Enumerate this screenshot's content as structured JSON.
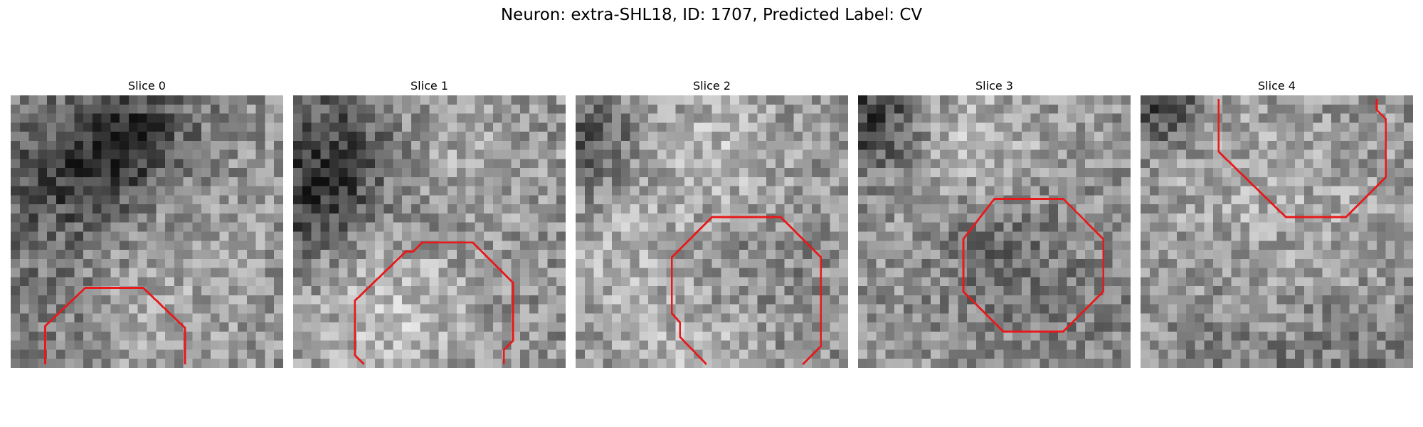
{
  "figure": {
    "title": "Neuron: extra-SHL18, ID: 1707, Predicted Label: CV"
  },
  "panels": [
    {
      "title": "Slice 0"
    },
    {
      "title": "Slice 1"
    },
    {
      "title": "Slice 2"
    },
    {
      "title": "Slice 3"
    },
    {
      "title": "Slice 4"
    }
  ],
  "style": {
    "contour_color": "#e8191b",
    "colormap": "gray"
  }
}
